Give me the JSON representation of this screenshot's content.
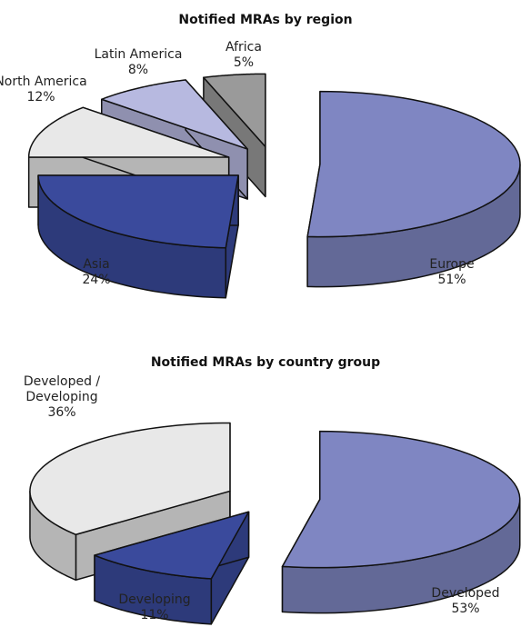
{
  "chart_data": [
    {
      "type": "pie",
      "title": "Notified MRAs by region",
      "categories": [
        "Europe",
        "Asia",
        "North America",
        "Latin America",
        "Africa"
      ],
      "values": [
        51,
        24,
        12,
        8,
        5
      ],
      "value_labels": [
        "51%",
        "24%",
        "12%",
        "8%",
        "5%"
      ],
      "colors": [
        "#7f86c2",
        "#3a4a9c",
        "#e8e8e8",
        "#b7b9e0",
        "#9a9a9a"
      ]
    },
    {
      "type": "pie",
      "title": "Notified MRAs by country group",
      "categories": [
        "Developed",
        "Developing",
        "Developed / Developing"
      ],
      "values": [
        53,
        11,
        36
      ],
      "value_labels": [
        "53%",
        "11%",
        "36%"
      ],
      "colors": [
        "#7f86c2",
        "#3a4a9c",
        "#e8e8e8"
      ]
    }
  ]
}
